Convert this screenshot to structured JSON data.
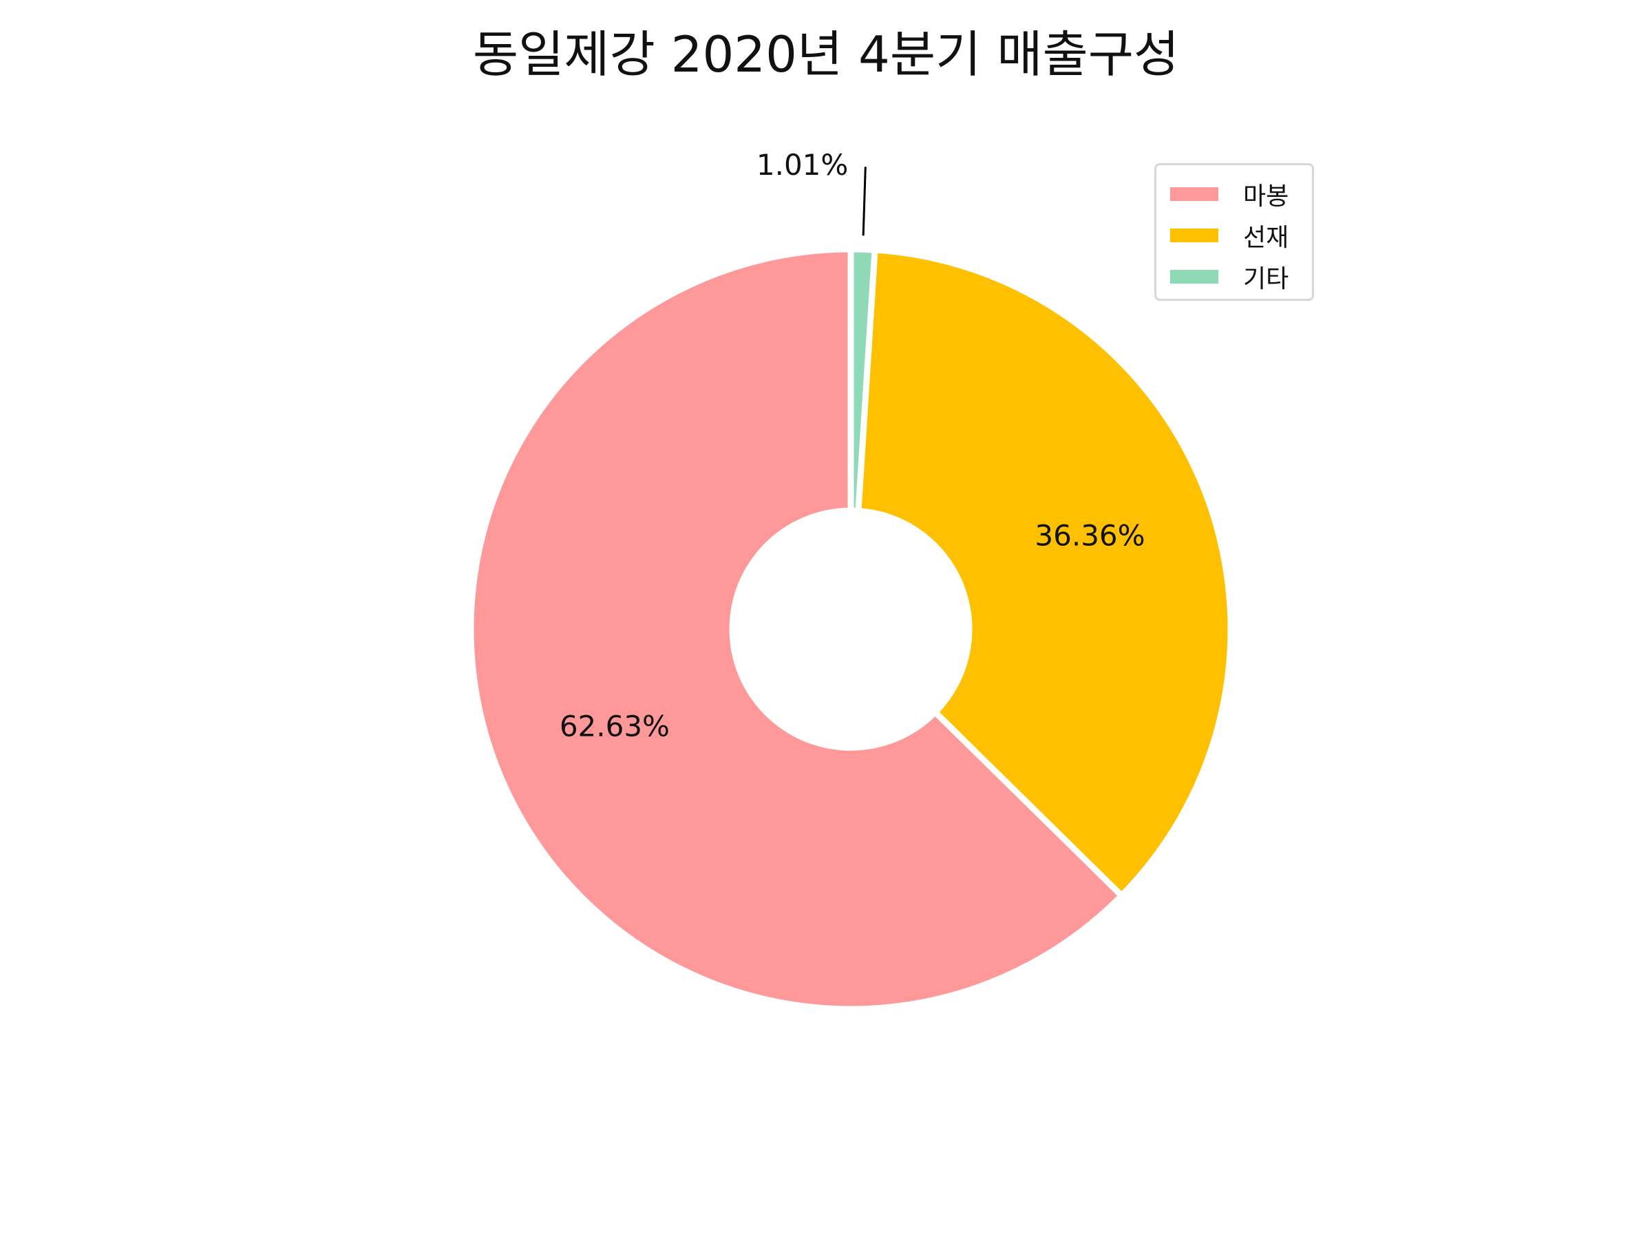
{
  "chart_data": {
    "type": "pie",
    "style": "donut",
    "title": "동일제강 2020년 4분기 매출구성",
    "categories": [
      "마봉",
      "선재",
      "기타"
    ],
    "values": [
      62.63,
      36.36,
      1.01
    ],
    "labels": [
      "62.63%",
      "36.36%",
      "1.01%"
    ],
    "colors": [
      "#FF9999",
      "#FFC000",
      "#8FD9B6"
    ],
    "legend": "top-right",
    "start_angle_deg": 90,
    "direction": "counterclockwise",
    "slice_edge_color": "#FFFFFF"
  }
}
